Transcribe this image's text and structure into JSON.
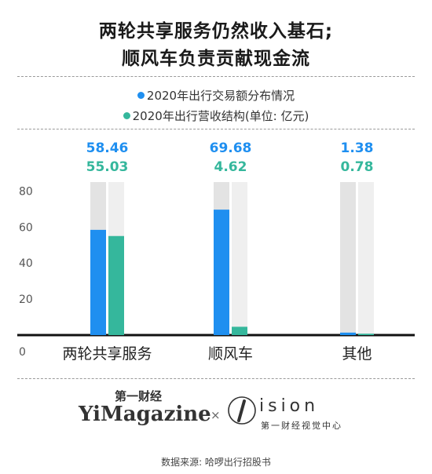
{
  "title": {
    "line1": "两轮共享服务仍然收入基石;",
    "line2": "顺风车负责贡献现金流"
  },
  "legend": {
    "series1": "2020年出行交易额分布情况",
    "series2": "2020年出行营收结构(单位: 亿元)"
  },
  "colors": {
    "series1": "#1f8ff0",
    "series2": "#35b79c",
    "track": "#e6e6e6"
  },
  "chart_data": {
    "type": "bar",
    "categories": [
      "两轮共享服务",
      "顺风车",
      "其他"
    ],
    "series": [
      {
        "name": "2020年出行交易额分布情况",
        "values": [
          58.46,
          69.68,
          1.38
        ],
        "labels": [
          "58.46",
          "69.68",
          "1.38"
        ]
      },
      {
        "name": "2020年出行营收结构(单位: 亿元)",
        "values": [
          55.03,
          4.62,
          0.78
        ],
        "labels": [
          "55.03",
          "4.62",
          "0.78"
        ]
      }
    ],
    "yticks": [
      "0",
      "20",
      "40",
      "60",
      "80"
    ],
    "ylim": [
      0,
      85
    ]
  },
  "footer": {
    "brand_small": "第一财经",
    "brand_big": "YiMagazine",
    "times": "×",
    "vision": "ision",
    "vision_sub": "第一财经视觉中心",
    "source": "数据来源: 哈啰出行招股书"
  }
}
